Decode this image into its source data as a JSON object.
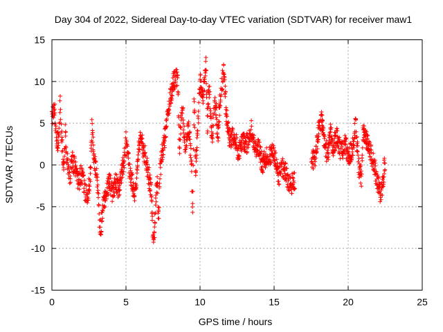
{
  "chart_data": {
    "type": "scatter",
    "title": "Day 304 of 2022, Sidereal Day-to-day VTEC variation (SDTVAR) for receiver maw1",
    "xlabel": "GPS time / hours",
    "ylabel": "SDTVAR / TECUs",
    "xlim": [
      0,
      25
    ],
    "ylim": [
      -15,
      15
    ],
    "xticks": [
      0,
      5,
      10,
      15,
      20,
      25
    ],
    "yticks": [
      -15,
      -10,
      -5,
      0,
      5,
      10,
      15
    ],
    "xtick_labels": [
      "0",
      "5",
      "10",
      "15",
      "20",
      "25"
    ],
    "ytick_labels": [
      "-15",
      "-10",
      "-5",
      "0",
      "5",
      "10",
      "15"
    ],
    "grid": true,
    "marker": "+",
    "color": "#ff0000",
    "segments": [
      [
        0.0,
        0.0,
        6.0
      ],
      [
        0.2,
        0.2,
        6.5
      ],
      [
        0.3,
        0.3,
        2.5
      ],
      [
        0.45,
        0.45,
        3.0
      ],
      [
        0.55,
        0.55,
        7.5
      ],
      [
        0.6,
        0.6,
        5.0
      ],
      [
        0.7,
        0.7,
        2.0
      ],
      [
        0.8,
        0.8,
        -1.0
      ],
      [
        0.9,
        0.9,
        4.0
      ],
      [
        1.0,
        1.0,
        1.0
      ],
      [
        1.2,
        1.2,
        -1.5
      ],
      [
        1.4,
        1.4,
        0.5
      ],
      [
        1.6,
        1.6,
        -0.5
      ],
      [
        1.8,
        1.8,
        -2.0
      ],
      [
        2.0,
        2.0,
        -1.0
      ],
      [
        2.2,
        2.2,
        -3.0
      ],
      [
        2.4,
        2.4,
        -4.0
      ],
      [
        2.6,
        2.6,
        -1.0
      ],
      [
        2.7,
        2.7,
        4.5
      ],
      [
        2.8,
        2.8,
        2.0
      ],
      [
        2.9,
        2.9,
        0.0
      ],
      [
        3.0,
        3.0,
        -1.0
      ],
      [
        3.1,
        3.1,
        -2.5
      ],
      [
        3.2,
        3.2,
        -6.5
      ],
      [
        3.3,
        3.3,
        -7.5
      ],
      [
        3.5,
        3.5,
        -4.5
      ],
      [
        3.7,
        3.7,
        -3.0
      ],
      [
        3.9,
        3.9,
        -2.0
      ],
      [
        4.1,
        4.1,
        -3.5
      ],
      [
        4.3,
        4.3,
        -2.0
      ],
      [
        4.5,
        4.5,
        -3.0
      ],
      [
        4.7,
        4.7,
        -1.0
      ],
      [
        4.9,
        4.9,
        1.0
      ],
      [
        5.0,
        5.0,
        3.0
      ],
      [
        5.2,
        5.2,
        0.0
      ],
      [
        5.4,
        5.4,
        -2.0
      ],
      [
        5.6,
        5.6,
        -3.5
      ],
      [
        5.8,
        5.8,
        0.0
      ],
      [
        5.9,
        5.9,
        3.0
      ],
      [
        6.1,
        6.1,
        2.5
      ],
      [
        6.3,
        6.3,
        1.0
      ],
      [
        6.5,
        6.5,
        -1.0
      ],
      [
        6.7,
        6.7,
        -3.0
      ],
      [
        6.8,
        6.8,
        -7.5
      ],
      [
        6.9,
        6.9,
        -9.5
      ],
      [
        7.0,
        7.0,
        -4.0
      ],
      [
        7.1,
        7.1,
        -2.0
      ],
      [
        7.2,
        7.2,
        -6.5
      ],
      [
        7.3,
        7.3,
        -1.0
      ],
      [
        7.4,
        7.4,
        1.0
      ],
      [
        7.6,
        7.6,
        3.0
      ],
      [
        7.8,
        7.8,
        6.5
      ],
      [
        8.0,
        8.0,
        8.0
      ],
      [
        8.2,
        8.2,
        10.0
      ],
      [
        8.5,
        8.5,
        10.5
      ],
      [
        8.6,
        8.6,
        2.0
      ],
      [
        8.8,
        8.8,
        7.0
      ],
      [
        9.0,
        9.0,
        2.5
      ],
      [
        9.2,
        9.2,
        4.5
      ],
      [
        9.4,
        9.4,
        1.5
      ],
      [
        9.5,
        9.5,
        -5.5
      ],
      [
        9.6,
        9.6,
        8.5
      ],
      [
        9.7,
        9.7,
        -0.5
      ],
      [
        9.9,
        9.9,
        6.0
      ],
      [
        10.0,
        10.0,
        10.0
      ],
      [
        10.2,
        10.2,
        8.0
      ],
      [
        10.4,
        10.4,
        12.0
      ],
      [
        10.5,
        10.5,
        4.5
      ],
      [
        10.6,
        10.6,
        10.0
      ],
      [
        10.8,
        10.8,
        2.5
      ],
      [
        11.0,
        11.0,
        8.5
      ],
      [
        11.2,
        11.2,
        3.5
      ],
      [
        11.4,
        11.4,
        9.0
      ],
      [
        11.6,
        11.6,
        11.0
      ],
      [
        11.8,
        11.8,
        5.5
      ],
      [
        12.0,
        12.0,
        3.0
      ],
      [
        12.3,
        12.3,
        3.5
      ],
      [
        12.6,
        12.6,
        1.5
      ],
      [
        12.9,
        12.9,
        3.0
      ],
      [
        13.2,
        13.2,
        2.5
      ],
      [
        13.5,
        13.5,
        4.5
      ],
      [
        13.7,
        13.7,
        2.0
      ],
      [
        14.0,
        14.0,
        2.0
      ],
      [
        14.2,
        14.2,
        0.0
      ],
      [
        14.5,
        14.5,
        1.0
      ],
      [
        15.0,
        15.0,
        1.5
      ],
      [
        15.3,
        15.3,
        -1.5
      ],
      [
        15.5,
        15.5,
        0.0
      ],
      [
        15.8,
        15.8,
        -1.0
      ],
      [
        16.0,
        16.0,
        -2.5
      ],
      [
        16.4,
        16.4,
        -2.0
      ],
      [
        17.5,
        17.5,
        0.5
      ],
      [
        17.8,
        17.8,
        1.0
      ],
      [
        18.0,
        18.0,
        4.0
      ],
      [
        18.2,
        18.2,
        5.5
      ],
      [
        18.4,
        18.4,
        3.0
      ],
      [
        18.6,
        18.6,
        1.0
      ],
      [
        18.8,
        18.8,
        4.0
      ],
      [
        19.0,
        19.0,
        2.0
      ],
      [
        19.2,
        19.2,
        3.5
      ],
      [
        19.5,
        19.5,
        1.5
      ],
      [
        19.8,
        19.8,
        2.5
      ],
      [
        20.0,
        20.0,
        1.0
      ],
      [
        20.3,
        20.3,
        2.0
      ],
      [
        20.5,
        20.5,
        5.0
      ],
      [
        20.7,
        20.7,
        0.0
      ],
      [
        20.9,
        20.9,
        -1.5
      ],
      [
        21.0,
        21.0,
        4.0
      ],
      [
        21.5,
        21.5,
        1.5
      ],
      [
        21.8,
        21.8,
        -0.5
      ],
      [
        22.0,
        22.0,
        -2.0
      ],
      [
        22.2,
        22.2,
        -4.0
      ],
      [
        22.5,
        22.5,
        0.5
      ]
    ]
  }
}
